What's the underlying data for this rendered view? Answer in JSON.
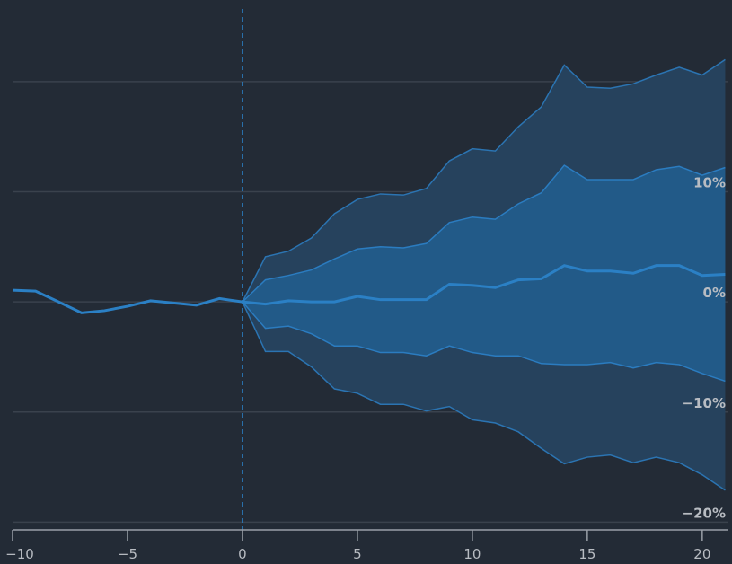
{
  "chart_data": {
    "type": "fan",
    "x": [
      -10,
      -9,
      -8,
      -7,
      -6,
      -5,
      -4,
      -3,
      -2,
      -1,
      0,
      1,
      2,
      3,
      4,
      5,
      6,
      7,
      8,
      9,
      10,
      11,
      12,
      13,
      14,
      15,
      16,
      17,
      18,
      19,
      20,
      21
    ],
    "median": {
      "color": "#2b80c5",
      "values": [
        1.06,
        0.98,
        0,
        -1.0,
        -0.8,
        -0.4,
        0.1,
        -0.1,
        -0.3,
        0.3,
        0,
        -0.2,
        0.1,
        0,
        0,
        0.5,
        0.2,
        0.2,
        0.2,
        1.6,
        1.5,
        1.3,
        2.0,
        2.1,
        3.3,
        2.8,
        2.8,
        2.6,
        3.3,
        3.3,
        2.4,
        2.5
      ]
    },
    "bands": [
      {
        "fill": "#26425d",
        "line": "#2b74b2",
        "upper": [
          null,
          null,
          null,
          null,
          null,
          null,
          null,
          null,
          null,
          null,
          0,
          4.1,
          4.6,
          5.8,
          8.0,
          9.3,
          9.8,
          9.7,
          10.3,
          12.8,
          13.9,
          13.7,
          15.9,
          17.7,
          21.5,
          19.5,
          19.4,
          19.8,
          20.6,
          21.3,
          20.6,
          22.0
        ],
        "lower": [
          null,
          null,
          null,
          null,
          null,
          null,
          null,
          null,
          null,
          null,
          0,
          -4.5,
          -4.5,
          -5.9,
          -7.9,
          -8.3,
          -9.3,
          -9.3,
          -9.9,
          -9.5,
          -10.7,
          -11.0,
          -11.8,
          -13.3,
          -14.7,
          -14.1,
          -13.9,
          -14.6,
          -14.1,
          -14.6,
          -15.7,
          -17.1
        ]
      },
      {
        "fill": "#225a88",
        "line": "#2b7cc0",
        "upper": [
          null,
          null,
          null,
          null,
          null,
          null,
          null,
          null,
          null,
          null,
          0,
          2.0,
          2.4,
          2.9,
          3.9,
          4.8,
          5.0,
          4.9,
          5.3,
          7.2,
          7.7,
          7.5,
          8.9,
          9.9,
          12.4,
          11.1,
          11.1,
          11.1,
          12.0,
          12.3,
          11.5,
          12.2
        ],
        "lower": [
          null,
          null,
          null,
          null,
          null,
          null,
          null,
          null,
          null,
          null,
          0,
          -2.4,
          -2.2,
          -2.9,
          -4.0,
          -4.0,
          -4.6,
          -4.6,
          -4.9,
          -4.0,
          -4.6,
          -4.9,
          -4.9,
          -5.6,
          -5.7,
          -5.7,
          -5.5,
          -6.0,
          -5.5,
          -5.7,
          -6.5,
          -7.2
        ]
      }
    ],
    "vline": 0,
    "xlim": [
      -10,
      21.1
    ],
    "ylim": [
      -20.7,
      27
    ],
    "xticks": [
      {
        "value": -10,
        "label": "−10"
      },
      {
        "value": -5,
        "label": "−5"
      },
      0,
      5,
      10,
      15,
      20
    ],
    "yticks": [
      {
        "value": -20,
        "label": "−20%"
      },
      {
        "value": -10,
        "label": "−10%"
      },
      {
        "value": 0,
        "label": "0%"
      },
      {
        "value": 10,
        "label": "10%"
      }
    ],
    "ygrid": [
      -20,
      -10,
      0,
      10,
      20
    ],
    "grid": true
  }
}
